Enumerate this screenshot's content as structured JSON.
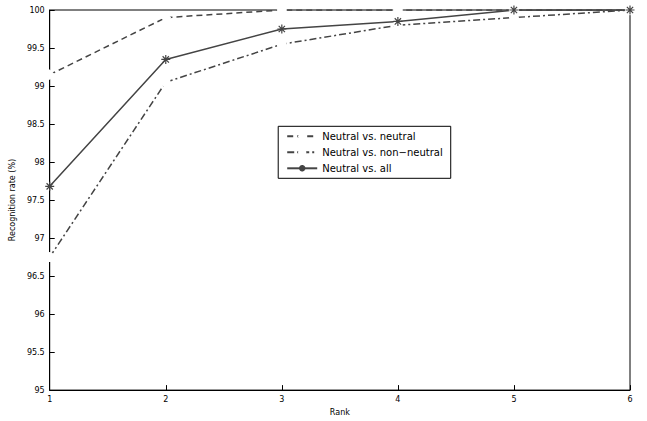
{
  "chart_data": {
    "type": "line",
    "x_label": "Rank",
    "y_label": "Recognition rate (%)",
    "x": [
      1,
      2,
      3,
      4,
      5,
      6
    ],
    "xlim": [
      1,
      6
    ],
    "xticks": [
      1,
      2,
      3,
      4,
      5,
      6
    ],
    "ylim": [
      95,
      100
    ],
    "yticks": [
      95,
      95.5,
      96,
      96.5,
      97,
      97.5,
      98,
      98.5,
      99,
      99.5,
      100
    ],
    "grid": false,
    "legend": "center",
    "series": [
      {
        "name": "Neutral vs. neutral",
        "color": "#444444",
        "marker": "diamond",
        "line_style": "dashed",
        "values": [
          99.15,
          99.9,
          100,
          100,
          100,
          100
        ]
      },
      {
        "name": "Neutral vs. non−neutral",
        "color": "#444444",
        "marker": "circle",
        "line_style": "dashdot",
        "values": [
          96.75,
          99.05,
          99.55,
          99.8,
          99.9,
          100
        ]
      },
      {
        "name": "Neutral vs. all",
        "color": "#444444",
        "marker": "star",
        "line_style": "solid",
        "values": [
          97.68,
          99.35,
          99.75,
          99.85,
          100,
          100
        ]
      }
    ]
  }
}
